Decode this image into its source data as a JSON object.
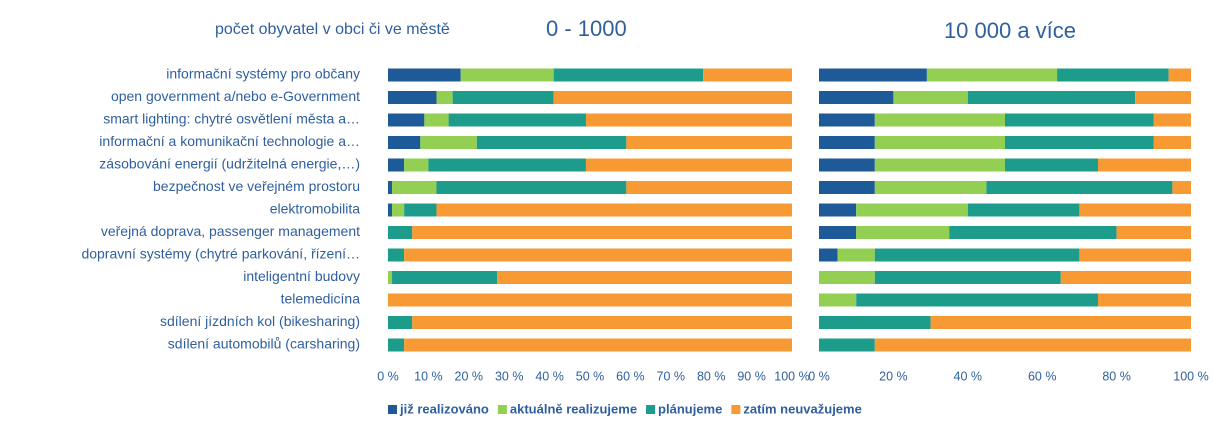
{
  "chart_data": [
    {
      "type": "bar",
      "orientation": "horizontal",
      "stacked": true,
      "subtitle": "počet obyvatel v obci či ve městě",
      "title": "0 - 1000",
      "categories": [
        "informační systémy pro občany",
        "open government a/nebo e-Government",
        "smart lighting: chytré osvětlení města a…",
        "informační a komunikační technologie a…",
        "zásobování energií (udržitelná energie,…)",
        "bezpečnost ve veřejném prostoru",
        "elektromobilita",
        "veřejná doprava, passenger management",
        "dopravní systémy (chytré parkování, řízení…",
        "inteligentní budovy",
        "telemedicína",
        "sdílení jízdních kol (bikesharing)",
        "sdílení automobilů (carsharing)"
      ],
      "series": [
        {
          "name": "již realizováno",
          "color": "#1f5a98",
          "values": [
            18,
            12,
            9,
            8,
            4,
            1,
            1,
            0,
            0,
            0,
            0,
            0,
            0
          ]
        },
        {
          "name": "aktuálně realizujeme",
          "color": "#92cf52",
          "values": [
            23,
            4,
            6,
            14,
            6,
            11,
            3,
            0,
            0,
            1,
            0,
            0,
            0
          ]
        },
        {
          "name": "plánujeme",
          "color": "#1d9c8b",
          "values": [
            37,
            25,
            34,
            37,
            39,
            47,
            8,
            6,
            4,
            26,
            0,
            6,
            4
          ]
        },
        {
          "name": "zatím neuvažujeme",
          "color": "#f79a34",
          "values": [
            22,
            59,
            51,
            41,
            51,
            41,
            88,
            94,
            96,
            73,
            100,
            94,
            96
          ]
        }
      ],
      "xlim": [
        0,
        100
      ],
      "xticks": [
        {
          "value": 0,
          "label": "0 %"
        },
        {
          "value": 10,
          "label": "10 %"
        },
        {
          "value": 20,
          "label": "20 %"
        },
        {
          "value": 30,
          "label": "30 %"
        },
        {
          "value": 40,
          "label": "40 %"
        },
        {
          "value": 50,
          "label": "50 %"
        },
        {
          "value": 60,
          "label": "60 %"
        },
        {
          "value": 70,
          "label": "70 %"
        },
        {
          "value": 80,
          "label": "80 %"
        },
        {
          "value": 90,
          "label": "90 %"
        },
        {
          "value": 100,
          "label": "100 %"
        }
      ]
    },
    {
      "type": "bar",
      "orientation": "horizontal",
      "stacked": true,
      "title": "10 000 a více",
      "series": [
        {
          "color": "#1f5a98",
          "values": [
            29,
            20,
            15,
            15,
            15,
            15,
            10,
            10,
            5,
            0,
            0,
            0,
            0
          ]
        },
        {
          "color": "#92cf52",
          "values": [
            35,
            20,
            35,
            35,
            35,
            30,
            30,
            25,
            10,
            15,
            10,
            0,
            0
          ]
        },
        {
          "color": "#1d9c8b",
          "values": [
            30,
            45,
            40,
            40,
            25,
            50,
            30,
            45,
            55,
            50,
            65,
            30,
            15
          ]
        },
        {
          "color": "#f79a34",
          "values": [
            6,
            15,
            10,
            10,
            25,
            5,
            30,
            20,
            30,
            35,
            25,
            70,
            85
          ]
        }
      ],
      "xlim": [
        0,
        100
      ],
      "xticks": [
        {
          "value": 0,
          "label": "0 %"
        },
        {
          "value": 20,
          "label": "20 %"
        },
        {
          "value": 40,
          "label": "40 %"
        },
        {
          "value": 60,
          "label": "60 %"
        },
        {
          "value": 80,
          "label": "80 %"
        },
        {
          "value": 100,
          "label": "100 %"
        }
      ]
    }
  ]
}
